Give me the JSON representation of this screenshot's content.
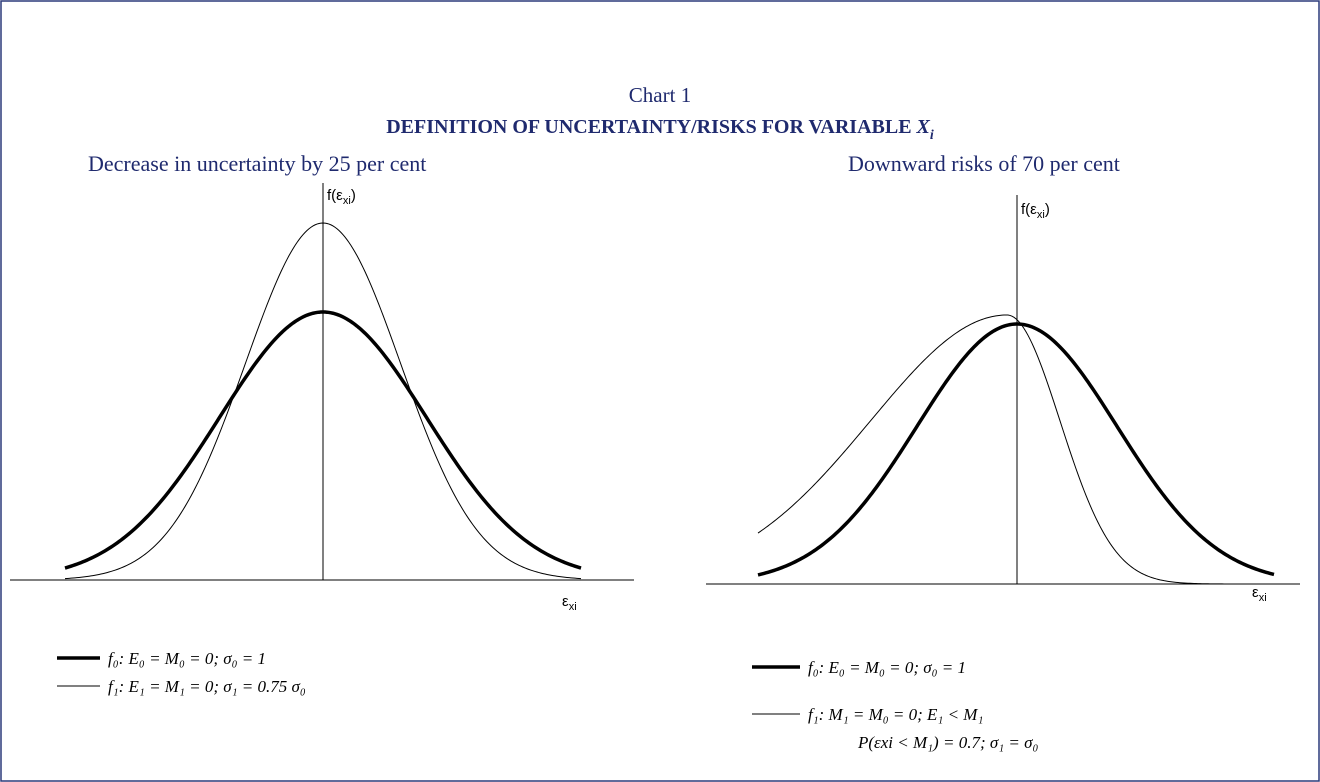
{
  "header": {
    "chart_label": "Chart 1",
    "title": "DEFINITION OF UNCERTAINTY/RISKS FOR VARIABLE",
    "variable": "X",
    "variable_subscript": "i"
  },
  "panels": [
    {
      "title": "Decrease in uncertainty by 25 per cent",
      "y_axis_label": {
        "main": "f(ε",
        "sub": "xi",
        "close": ")"
      },
      "x_axis_label": {
        "main": "ε",
        "sub": "xi"
      },
      "legend": [
        {
          "lines": [
            "f₀: E₀ = M₀ = 0; σ₀ = 1"
          ]
        },
        {
          "lines": [
            "f₁: E₁ = M₁ = 0; σ₁ = 0.75 σ₀"
          ]
        }
      ]
    },
    {
      "title": "Downward risks of 70 per cent",
      "y_axis_label": {
        "main": "f(ε",
        "sub": "xi",
        "close": ")"
      },
      "x_axis_label": {
        "main": "ε",
        "sub": "xi"
      },
      "legend": [
        {
          "lines": [
            "f₀: E₀ = M₀ = 0; σ₀ = 1"
          ]
        },
        {
          "lines": [
            "f₁: M₁ = M₀ = 0; E₁ < M₁",
            "P(εxi < M₁) = 0.7; σ₁ = σ₀"
          ]
        }
      ]
    }
  ]
}
